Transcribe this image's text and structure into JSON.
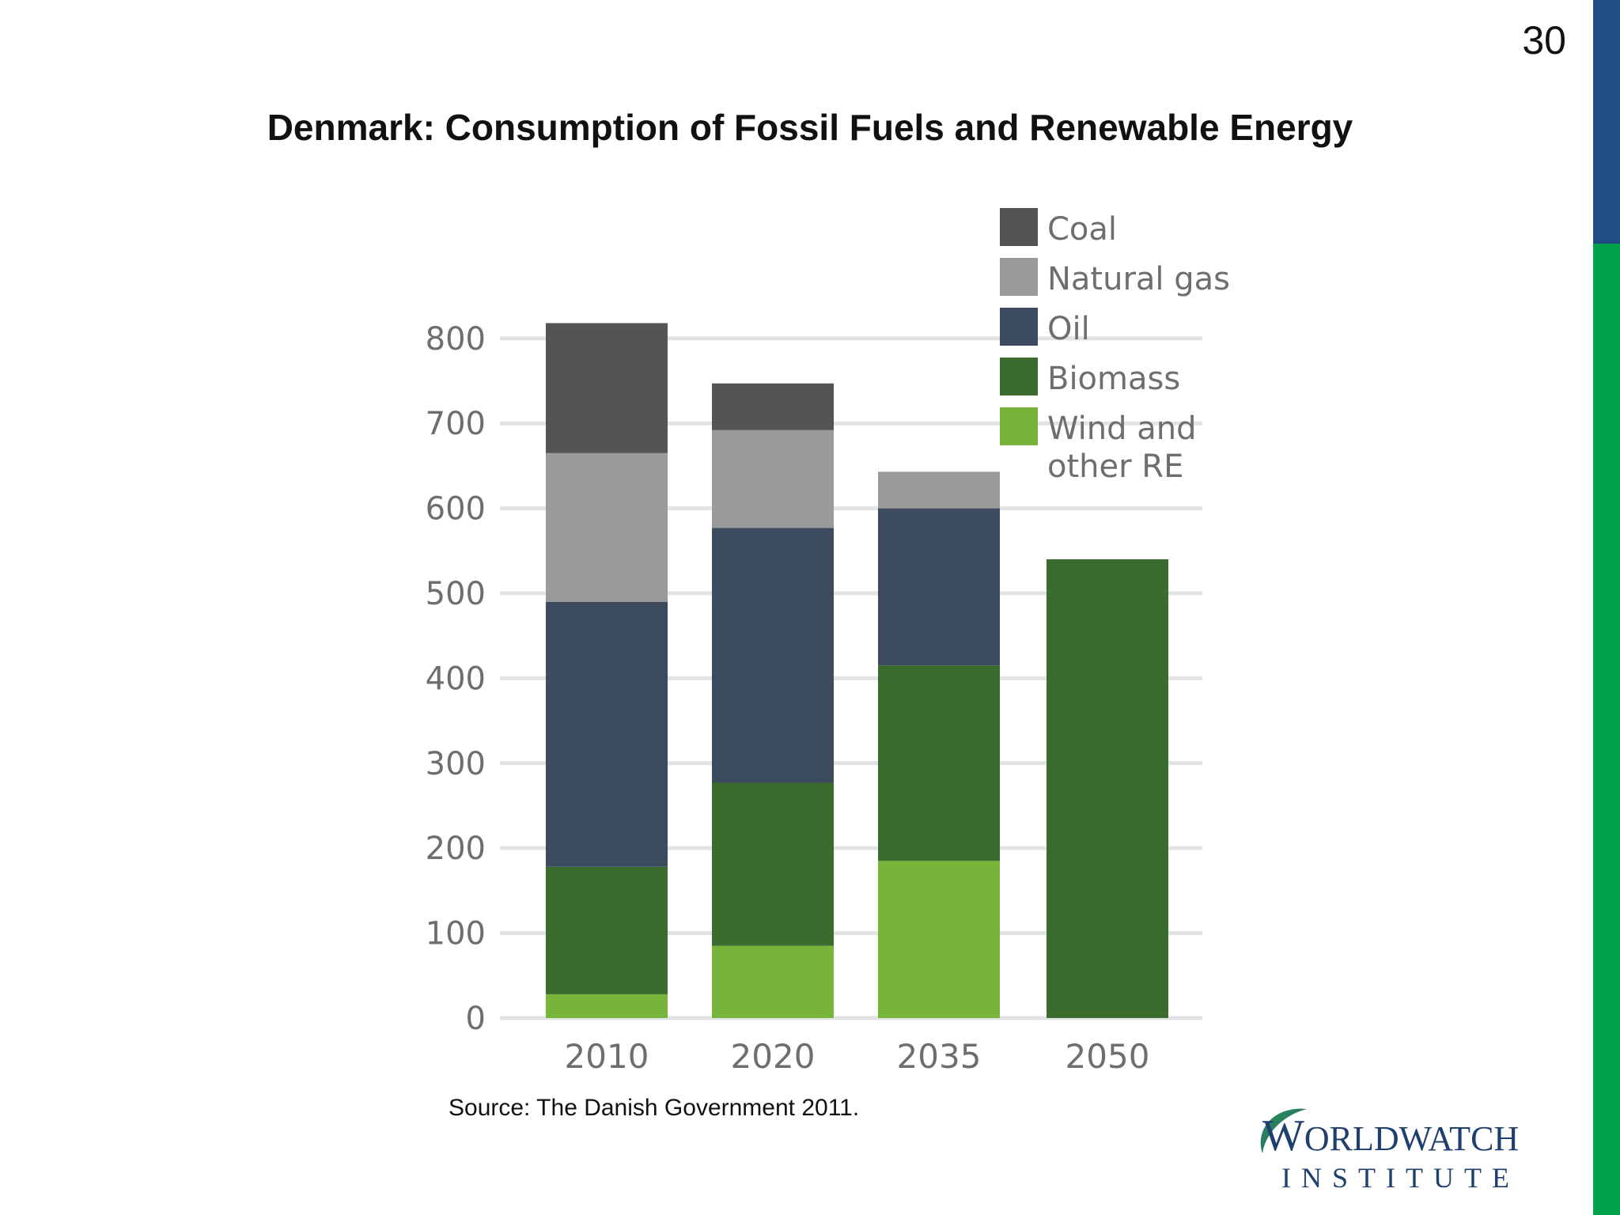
{
  "slide": {
    "page_number": "30",
    "title": "Denmark:  Consumption of Fossil Fuels and Renewable Energy",
    "source": "Source: The Danish Government 2011.",
    "colors": {
      "side_blue": "#1f4e82",
      "side_green": "#00a14b"
    }
  },
  "logo": {
    "line1_initial": "W",
    "line1_rest": "ORLDWATCH",
    "line2": "INSTITUTE"
  },
  "chart_data": {
    "type": "bar",
    "stacked": true,
    "categories": [
      "2010",
      "2020",
      "2035",
      "2050"
    ],
    "y_ticks": [
      "0",
      "100",
      "200",
      "300",
      "400",
      "500",
      "600",
      "700",
      "800"
    ],
    "ylim": [
      0,
      830
    ],
    "grid": true,
    "legend_position": "top-right",
    "series": [
      {
        "name": "Wind and other RE",
        "legend_lines": [
          "Wind and",
          "other RE"
        ],
        "color": "#76b53a",
        "values": [
          28,
          85,
          185,
          0
        ]
      },
      {
        "name": "Biomass",
        "legend_lines": [
          "Biomass"
        ],
        "color": "#3b6b2e",
        "values": [
          150,
          192,
          230,
          540
        ]
      },
      {
        "name": "Oil",
        "legend_lines": [
          "Oil"
        ],
        "color": "#3d4b5e",
        "values": [
          312,
          300,
          185,
          0
        ]
      },
      {
        "name": "Natural gas",
        "legend_lines": [
          "Natural gas"
        ],
        "color": "#9a9a9c",
        "values": [
          175,
          115,
          43,
          0
        ]
      },
      {
        "name": "Coal",
        "legend_lines": [
          "Coal"
        ],
        "color": "#545456",
        "values": [
          153,
          55,
          0,
          0
        ]
      }
    ],
    "legend_order": [
      "Coal",
      "Natural gas",
      "Oil",
      "Biomass",
      "Wind and other RE"
    ]
  }
}
